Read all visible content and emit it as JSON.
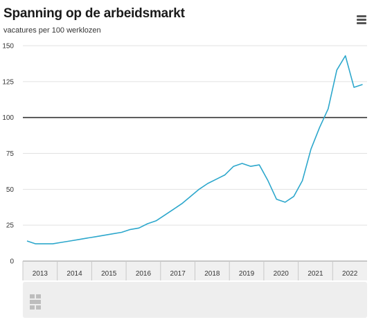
{
  "header": {
    "title": "Spanning op de arbeidsmarkt",
    "subtitle": "vacatures per 100 werklozen"
  },
  "colors": {
    "line": "#2ca7cc",
    "reference": "#333333",
    "grid": "#e1e1e1",
    "axis_band": "#f0f0f0"
  },
  "icons": {
    "menu": "hamburger-menu-icon",
    "logo": "cbs-logo-icon"
  },
  "chart_data": {
    "type": "line",
    "xlabel": "",
    "ylabel": "",
    "ylim": [
      0,
      150
    ],
    "yticks": [
      0,
      25,
      50,
      75,
      100,
      125,
      150
    ],
    "xlim": [
      2012.5,
      2022.5
    ],
    "categories": [
      "2013",
      "2014",
      "2015",
      "2016",
      "2017",
      "2018",
      "2019",
      "2020",
      "2021",
      "2022"
    ],
    "reference_line": 100,
    "grid": true,
    "legend": "none",
    "series": [
      {
        "x": [
          2012.62,
          2012.87,
          2013.12,
          2013.37,
          2013.62,
          2013.87,
          2014.12,
          2014.37,
          2014.62,
          2014.87,
          2015.12,
          2015.37,
          2015.62,
          2015.87,
          2016.12,
          2016.37,
          2016.62,
          2016.87,
          2017.12,
          2017.37,
          2017.62,
          2017.87,
          2018.12,
          2018.37,
          2018.62,
          2018.87,
          2019.12,
          2019.37,
          2019.62,
          2019.87,
          2020.12,
          2020.37,
          2020.62,
          2020.87,
          2021.12,
          2021.37,
          2021.62,
          2021.87,
          2022.12,
          2022.37
        ],
        "values": [
          14,
          12,
          12,
          12,
          13,
          14,
          15,
          16,
          17,
          18,
          19,
          20,
          22,
          23,
          26,
          28,
          32,
          36,
          40,
          45,
          50,
          54,
          57,
          60,
          66,
          68,
          66,
          67,
          56,
          43,
          41,
          45,
          56,
          78,
          93,
          106,
          133,
          143,
          121,
          123
        ]
      }
    ]
  }
}
